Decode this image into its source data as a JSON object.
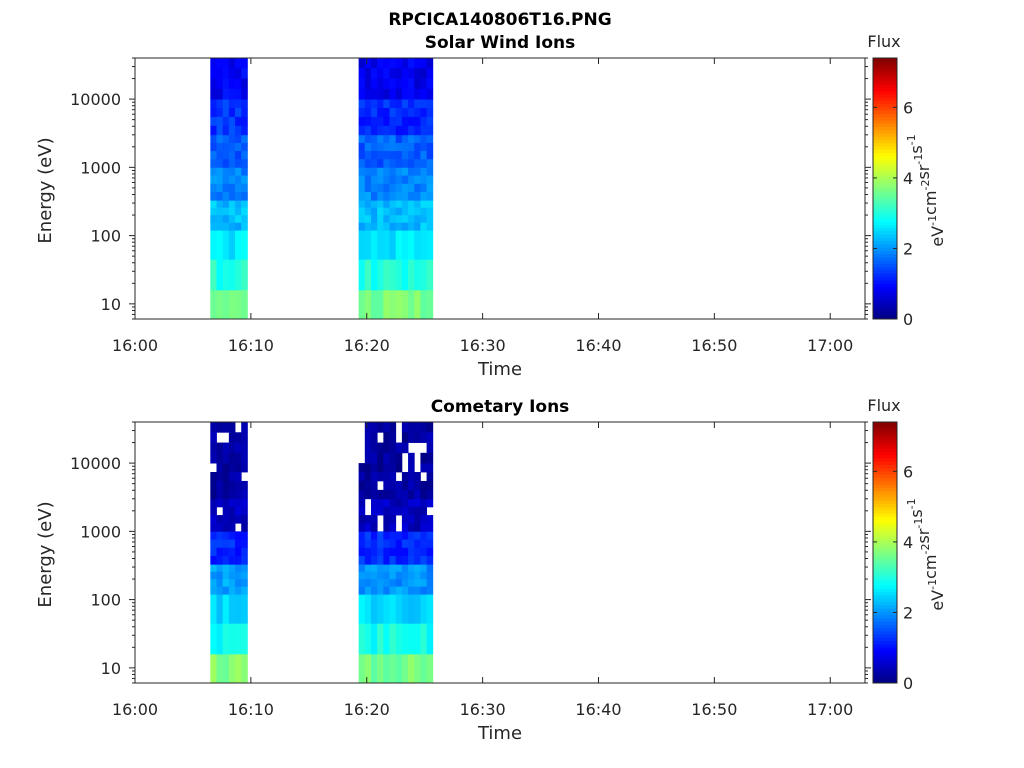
{
  "figure": {
    "title": "RPCICA140806T16.PNG"
  },
  "chart_data": [
    {
      "type": "heatmap",
      "title": "Solar Wind Ions",
      "xlabel": "Time",
      "ylabel": "Energy (eV)",
      "x_ticks": [
        "16:00",
        "16:10",
        "16:20",
        "16:30",
        "16:40",
        "16:50",
        "17:00"
      ],
      "x_range": [
        "16:00",
        "17:03"
      ],
      "y_scale": "log",
      "y_ticks": [
        "10",
        "100",
        "1000",
        "10000"
      ],
      "y_tick_values": [
        10,
        100,
        1000,
        10000
      ],
      "y_range": [
        6,
        40000
      ],
      "colorbar": {
        "title": "Flux",
        "label": "eV^-1 cm^-2 sr^-1 s^-1",
        "ticks": [
          "0",
          "2",
          "4",
          "6"
        ],
        "range": [
          0,
          7.4
        ],
        "colormap": "jet"
      },
      "data_blocks": [
        {
          "start": "16:06.5",
          "end": "16:09.7",
          "levels": [
            {
              "energy": [
                6,
                16
              ],
              "flux": 3.8
            },
            {
              "energy": [
                16,
                45
              ],
              "flux": 3.0
            },
            {
              "energy": [
                45,
                120
              ],
              "flux": 2.6
            },
            {
              "energy": [
                120,
                330
              ],
              "flux": 2.3
            },
            {
              "energy": [
                330,
                1000
              ],
              "flux": 1.9
            },
            {
              "energy": [
                1000,
                3000
              ],
              "flux": 1.6
            },
            {
              "energy": [
                3000,
                10000
              ],
              "flux": 1.3
            },
            {
              "energy": [
                10000,
                40000
              ],
              "flux": 0.9
            }
          ]
        },
        {
          "start": "16:19.3",
          "end": "16:25.7",
          "levels": [
            {
              "energy": [
                6,
                16
              ],
              "flux": 3.7
            },
            {
              "energy": [
                16,
                45
              ],
              "flux": 3.0
            },
            {
              "energy": [
                45,
                120
              ],
              "flux": 2.6
            },
            {
              "energy": [
                120,
                330
              ],
              "flux": 2.3
            },
            {
              "energy": [
                330,
                1000
              ],
              "flux": 1.9
            },
            {
              "energy": [
                1000,
                3000
              ],
              "flux": 1.6
            },
            {
              "energy": [
                3000,
                10000
              ],
              "flux": 1.2
            },
            {
              "energy": [
                10000,
                40000
              ],
              "flux": 0.8
            }
          ]
        }
      ]
    },
    {
      "type": "heatmap",
      "title": "Cometary Ions",
      "xlabel": "Time",
      "ylabel": "Energy (eV)",
      "x_ticks": [
        "16:00",
        "16:10",
        "16:20",
        "16:30",
        "16:40",
        "16:50",
        "17:00"
      ],
      "x_range": [
        "16:00",
        "17:03"
      ],
      "y_scale": "log",
      "y_ticks": [
        "10",
        "100",
        "1000",
        "10000"
      ],
      "y_tick_values": [
        10,
        100,
        1000,
        10000
      ],
      "y_range": [
        6,
        40000
      ],
      "colorbar": {
        "title": "Flux",
        "label": "eV^-1 cm^-2 sr^-1 s^-1",
        "ticks": [
          "0",
          "2",
          "4",
          "6"
        ],
        "range": [
          0,
          7.4
        ],
        "colormap": "jet"
      },
      "data_blocks": [
        {
          "start": "16:06.5",
          "end": "16:09.7",
          "levels": [
            {
              "energy": [
                6,
                16
              ],
              "flux": 3.7
            },
            {
              "energy": [
                16,
                45
              ],
              "flux": 2.9
            },
            {
              "energy": [
                45,
                120
              ],
              "flux": 2.5
            },
            {
              "energy": [
                120,
                330
              ],
              "flux": 2.1
            },
            {
              "energy": [
                330,
                1000
              ],
              "flux": 1.2
            },
            {
              "energy": [
                1000,
                3000
              ],
              "flux": 0.5
            },
            {
              "energy": [
                3000,
                10000
              ],
              "flux": 0.3
            },
            {
              "energy": [
                10000,
                40000
              ],
              "flux": 0.3
            }
          ]
        },
        {
          "start": "16:19.3",
          "end": "16:25.7",
          "levels": [
            {
              "energy": [
                6,
                16
              ],
              "flux": 3.6
            },
            {
              "energy": [
                16,
                45
              ],
              "flux": 2.9
            },
            {
              "energy": [
                45,
                120
              ],
              "flux": 2.5
            },
            {
              "energy": [
                120,
                330
              ],
              "flux": 2.0
            },
            {
              "energy": [
                330,
                1000
              ],
              "flux": 1.2
            },
            {
              "energy": [
                1000,
                3000
              ],
              "flux": 0.5
            },
            {
              "energy": [
                3000,
                10000
              ],
              "flux": 0.3
            },
            {
              "energy": [
                10000,
                40000
              ],
              "flux": 0.3
            }
          ]
        }
      ]
    }
  ]
}
